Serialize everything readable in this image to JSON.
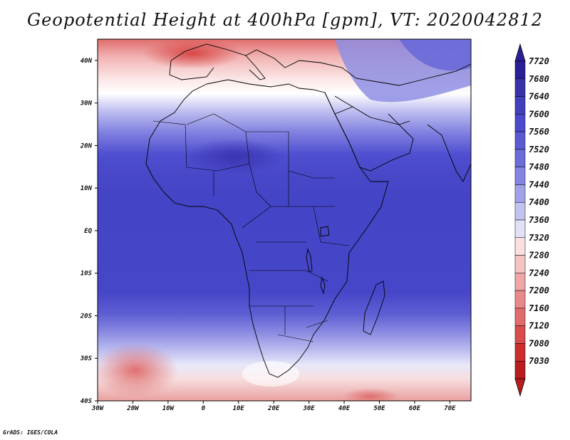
{
  "title": "Geopotential Height at 400hPa [gpm], VT: 2020042812",
  "credit": "GrADS: IGES/COLA",
  "map": {
    "lon_range": [
      -30,
      76
    ],
    "lat_range": [
      -40,
      45
    ],
    "lat_ticks": [
      {
        "value": 40,
        "label": "40N"
      },
      {
        "value": 30,
        "label": "30N"
      },
      {
        "value": 20,
        "label": "20N"
      },
      {
        "value": 10,
        "label": "10N"
      },
      {
        "value": 0,
        "label": "EQ"
      },
      {
        "value": -10,
        "label": "10S"
      },
      {
        "value": -20,
        "label": "20S"
      },
      {
        "value": -30,
        "label": "30S"
      },
      {
        "value": -40,
        "label": "40S"
      }
    ],
    "lon_ticks": [
      {
        "value": -30,
        "label": "30W"
      },
      {
        "value": -20,
        "label": "20W"
      },
      {
        "value": -10,
        "label": "10W"
      },
      {
        "value": 0,
        "label": "0"
      },
      {
        "value": 10,
        "label": "10E"
      },
      {
        "value": 20,
        "label": "20E"
      },
      {
        "value": 30,
        "label": "30E"
      },
      {
        "value": 40,
        "label": "40E"
      },
      {
        "value": 50,
        "label": "50E"
      },
      {
        "value": 60,
        "label": "60E"
      },
      {
        "value": 70,
        "label": "70E"
      }
    ]
  },
  "colorbar": {
    "labels": [
      "7720",
      "7680",
      "7640",
      "7600",
      "7560",
      "7520",
      "7480",
      "7440",
      "7400",
      "7360",
      "7320",
      "7280",
      "7240",
      "7200",
      "7160",
      "7120",
      "7080",
      "7030"
    ],
    "colors": [
      "#2a1f96",
      "#3a32a8",
      "#4141be",
      "#4a4acc",
      "#5a5ad2",
      "#6c6cda",
      "#8484e2",
      "#a2a2ea",
      "#c3c3f2",
      "#e1e1f8",
      "#fbe0e0",
      "#f5c3c3",
      "#eea6a6",
      "#e88a8a",
      "#e06c6c",
      "#d84c4c",
      "#cc2e2e",
      "#b81c1c"
    ]
  }
}
